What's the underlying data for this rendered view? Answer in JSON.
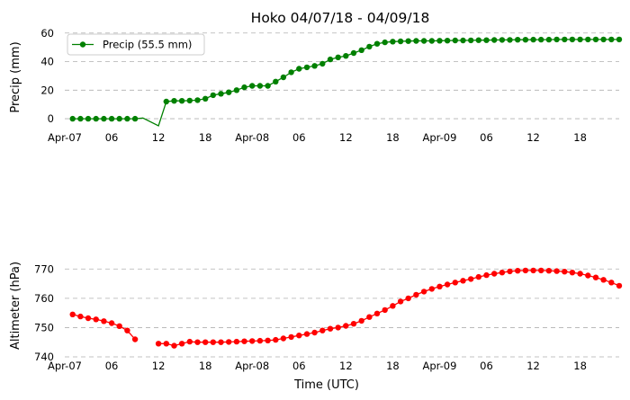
{
  "chart_data": [
    {
      "type": "line",
      "title": "Hoko 04/07/18 - 04/09/18",
      "xlabel": "",
      "ylabel": "Precip (mm)",
      "ylim": [
        -5,
        63
      ],
      "yticks": [
        0,
        20,
        40,
        60
      ],
      "grid": true,
      "legend_location": "upper-left",
      "xtick_labels": [
        "Apr-07",
        "06",
        "12",
        "18",
        "Apr-08",
        "06",
        "12",
        "18",
        "Apr-09",
        "06",
        "12",
        "18"
      ],
      "xtick_hours": [
        0,
        6,
        12,
        18,
        24,
        30,
        36,
        42,
        48,
        54,
        60,
        66
      ],
      "xlim_hours": [
        0,
        71
      ],
      "series": [
        {
          "name": "Precip (55.5 mm)",
          "color": "#008000",
          "x_hours": [
            1,
            2,
            3,
            4,
            5,
            6,
            7,
            8,
            9,
            10,
            12,
            13,
            14,
            15,
            16,
            17,
            18,
            19,
            20,
            21,
            22,
            23,
            24,
            25,
            26,
            27,
            28,
            29,
            30,
            31,
            32,
            33,
            34,
            35,
            36,
            37,
            38,
            39,
            40,
            41,
            42,
            43,
            44,
            45,
            46,
            47,
            48,
            49,
            50,
            51,
            52,
            53,
            54,
            55,
            56,
            57,
            58,
            59,
            60,
            61,
            62,
            63,
            64,
            65,
            66,
            67,
            68,
            69,
            70,
            71
          ],
          "values": [
            0,
            0,
            0,
            0,
            0,
            0,
            0,
            0,
            0,
            0.5,
            -5,
            12,
            12.5,
            12.5,
            12.7,
            13,
            14,
            16.5,
            17.5,
            18.5,
            20,
            22,
            23,
            23,
            23,
            26,
            29,
            32.5,
            35,
            36,
            37,
            38.5,
            41.5,
            43,
            44,
            46,
            48,
            50.5,
            52.5,
            53.5,
            54,
            54.2,
            54.4,
            54.5,
            54.5,
            54.5,
            54.6,
            54.7,
            54.8,
            54.8,
            54.9,
            55,
            55,
            55.1,
            55.2,
            55.2,
            55.3,
            55.3,
            55.4,
            55.4,
            55.4,
            55.5,
            55.5,
            55.5,
            55.5,
            55.5,
            55.5,
            55.5,
            55.5,
            55.5
          ],
          "marker_hours": [
            1,
            2,
            3,
            4,
            5,
            6,
            7,
            8,
            9,
            13,
            14,
            15,
            16,
            17,
            18,
            19,
            20,
            21,
            22,
            23,
            24,
            25,
            26,
            27,
            28,
            29,
            30,
            31,
            32,
            33,
            34,
            35,
            36,
            37,
            38,
            39,
            40,
            41,
            42,
            43,
            44,
            45,
            46,
            47,
            48,
            49,
            50,
            51,
            52,
            53,
            54,
            55,
            56,
            57,
            58,
            59,
            60,
            61,
            62,
            63,
            64,
            65,
            66,
            67,
            68,
            69,
            70,
            71
          ]
        }
      ]
    },
    {
      "type": "line",
      "title": "",
      "xlabel": "Time (UTC)",
      "ylabel": "Altimeter (hPa)",
      "ylim": [
        740,
        775
      ],
      "yticks": [
        740,
        750,
        760,
        770
      ],
      "grid": true,
      "xtick_labels": [
        "Apr-07",
        "06",
        "12",
        "18",
        "Apr-08",
        "06",
        "12",
        "18",
        "Apr-09",
        "06",
        "12",
        "18"
      ],
      "xtick_hours": [
        0,
        6,
        12,
        18,
        24,
        30,
        36,
        42,
        48,
        54,
        60,
        66
      ],
      "xlim_hours": [
        0,
        71
      ],
      "series": [
        {
          "color": "#ff0000",
          "segments": [
            {
              "x_hours": [
                1,
                2,
                3,
                4,
                5,
                6,
                7,
                8,
                9
              ],
              "values": [
                754.5,
                753.8,
                753.2,
                752.8,
                752.2,
                751.5,
                750.5,
                749,
                746
              ]
            },
            {
              "x_hours": [
                12,
                13,
                14,
                15,
                16,
                17,
                18,
                19,
                20,
                21,
                22,
                23,
                24,
                25,
                26,
                27,
                28,
                29,
                30,
                31,
                32,
                33,
                34,
                35,
                36,
                37,
                38,
                39,
                40,
                41,
                42,
                43,
                44,
                45,
                46,
                47,
                48,
                49,
                50,
                51,
                52,
                53,
                54,
                55,
                56,
                57,
                58,
                59,
                60,
                61,
                62,
                63,
                64,
                65,
                66,
                67,
                68,
                69,
                70,
                71
              ],
              "values": [
                744.5,
                744.5,
                743.8,
                744.5,
                745.2,
                745,
                745,
                745,
                745,
                745.1,
                745.2,
                745.3,
                745.4,
                745.5,
                745.6,
                745.8,
                746.3,
                746.8,
                747.3,
                747.8,
                748.3,
                749,
                749.6,
                750,
                750.6,
                751.3,
                752.3,
                753.6,
                754.8,
                756,
                757.4,
                758.9,
                760,
                761.2,
                762.3,
                763.2,
                764,
                764.7,
                765.4,
                766,
                766.6,
                767.3,
                767.9,
                768.4,
                768.8,
                769.2,
                769.4,
                769.5,
                769.5,
                769.5,
                769.4,
                769.3,
                769.1,
                768.8,
                768.4,
                767.8,
                767.1,
                766.3,
                765.4,
                764.3
              ]
            }
          ]
        }
      ]
    }
  ]
}
